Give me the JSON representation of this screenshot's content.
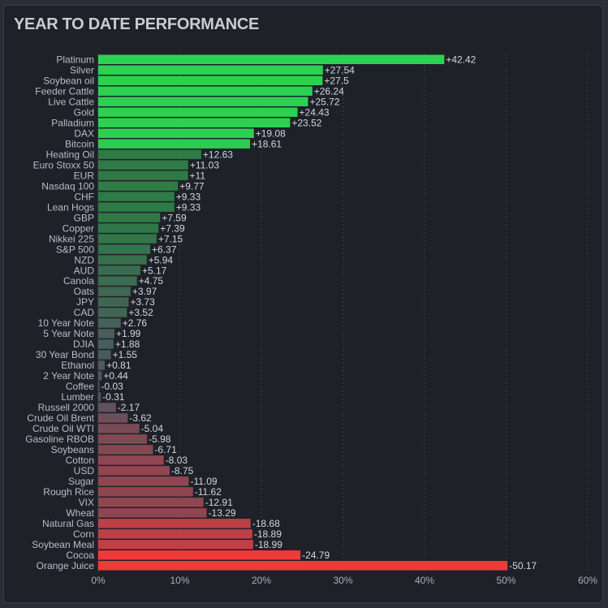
{
  "title": "YEAR TO DATE PERFORMANCE",
  "chart_data": {
    "type": "bar",
    "orientation": "horizontal",
    "title": "YEAR TO DATE PERFORMANCE",
    "xlabel": "",
    "ylabel": "",
    "xlim": [
      0,
      60
    ],
    "x_ticks": [
      "0%",
      "10%",
      "20%",
      "30%",
      "40%",
      "50%",
      "60%"
    ],
    "grid": "vertical dashed",
    "bar_length": "absolute value",
    "colors": {
      "positive_strong": "#2bd252",
      "positive_mid": "#2f7a45",
      "neutral": "#4f5560",
      "negative_mid": "#8f4650",
      "negative_strong": "#f03a3a",
      "background": "#1e2128"
    },
    "categories": [
      "Platinum",
      "Silver",
      "Soybean oil",
      "Feeder Cattle",
      "Live Cattle",
      "Gold",
      "Palladium",
      "DAX",
      "Bitcoin",
      "Heating Oil",
      "Euro Stoxx 50",
      "EUR",
      "Nasdaq 100",
      "CHF",
      "Lean Hogs",
      "GBP",
      "Copper",
      "Nikkei 225",
      "S&P 500",
      "NZD",
      "AUD",
      "Canola",
      "Oats",
      "JPY",
      "CAD",
      "10 Year Note",
      "5 Year Note",
      "DJIA",
      "30 Year Bond",
      "Ethanol",
      "2 Year Note",
      "Coffee",
      "Lumber",
      "Russell 2000",
      "Crude Oil Brent",
      "Crude Oil WTI",
      "Gasoline RBOB",
      "Soybeans",
      "Cotton",
      "USD",
      "Sugar",
      "Rough Rice",
      "VIX",
      "Wheat",
      "Natural Gas",
      "Corn",
      "Soybean Meal",
      "Cocoa",
      "Orange Juice"
    ],
    "values": [
      42.42,
      27.54,
      27.5,
      26.24,
      25.72,
      24.43,
      23.52,
      19.08,
      18.61,
      12.63,
      11.03,
      11,
      9.77,
      9.33,
      9.33,
      7.59,
      7.39,
      7.15,
      6.37,
      5.94,
      5.17,
      4.75,
      3.97,
      3.73,
      3.52,
      2.76,
      1.99,
      1.88,
      1.55,
      0.81,
      0.44,
      -0.03,
      -0.31,
      -2.17,
      -3.62,
      -5.04,
      -5.98,
      -6.71,
      -8.03,
      -8.75,
      -11.09,
      -11.62,
      -12.91,
      -13.29,
      -18.68,
      -18.89,
      -18.99,
      -24.79,
      -50.17
    ],
    "value_labels": [
      "+42.42",
      "+27.54",
      "+27.5",
      "+26.24",
      "+25.72",
      "+24.43",
      "+23.52",
      "+19.08",
      "+18.61",
      "+12.63",
      "+11.03",
      "+11",
      "+9.77",
      "+9.33",
      "+9.33",
      "+7.59",
      "+7.39",
      "+7.15",
      "+6.37",
      "+5.94",
      "+5.17",
      "+4.75",
      "+3.97",
      "+3.73",
      "+3.52",
      "+2.76",
      "+1.99",
      "+1.88",
      "+1.55",
      "+0.81",
      "+0.44",
      "-0.03",
      "-0.31",
      "-2.17",
      "-3.62",
      "-5.04",
      "-5.98",
      "-6.71",
      "-8.03",
      "-8.75",
      "-11.09",
      "-11.62",
      "-12.91",
      "-13.29",
      "-18.68",
      "-18.89",
      "-18.99",
      "-24.79",
      "-50.17"
    ]
  }
}
